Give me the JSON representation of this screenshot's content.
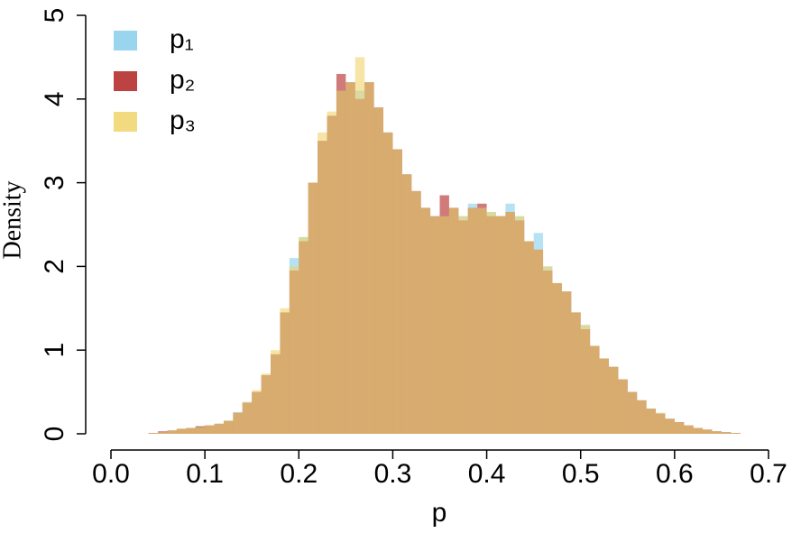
{
  "chart_data": {
    "type": "histogram",
    "x_label": "p",
    "y_label": "Density",
    "bins": [
      0.04,
      0.05,
      0.06,
      0.07,
      0.08,
      0.09,
      0.1,
      0.11,
      0.12,
      0.13,
      0.14,
      0.15,
      0.16,
      0.17,
      0.18,
      0.19,
      0.2,
      0.21,
      0.22,
      0.23,
      0.24,
      0.25,
      0.26,
      0.27,
      0.28,
      0.29,
      0.3,
      0.31,
      0.32,
      0.33,
      0.34,
      0.35,
      0.36,
      0.37,
      0.38,
      0.39,
      0.4,
      0.41,
      0.42,
      0.43,
      0.44,
      0.45,
      0.46,
      0.47,
      0.48,
      0.49,
      0.5,
      0.51,
      0.52,
      0.53,
      0.54,
      0.55,
      0.56,
      0.57,
      0.58,
      0.59,
      0.6,
      0.61,
      0.62,
      0.63,
      0.64,
      0.65,
      0.66,
      0.67
    ],
    "series": [
      {
        "name": "p₁",
        "color": "#87ceeb",
        "values": [
          0.01,
          0.02,
          0.04,
          0.06,
          0.07,
          0.09,
          0.1,
          0.12,
          0.16,
          0.26,
          0.38,
          0.5,
          0.7,
          0.95,
          1.45,
          2.1,
          2.35,
          3.0,
          3.5,
          3.8,
          4.1,
          4.2,
          4.1,
          4.2,
          3.9,
          3.6,
          3.4,
          3.1,
          2.9,
          2.7,
          2.6,
          2.6,
          2.7,
          2.6,
          2.75,
          2.7,
          2.65,
          2.6,
          2.75,
          2.6,
          2.3,
          2.4,
          2.0,
          1.8,
          1.7,
          1.45,
          1.3,
          1.05,
          0.9,
          0.8,
          0.65,
          0.5,
          0.4,
          0.3,
          0.25,
          0.18,
          0.14,
          0.1,
          0.07,
          0.05,
          0.03,
          0.02,
          0.01
        ]
      },
      {
        "name": "p₂",
        "color": "#b22222",
        "values": [
          0.01,
          0.03,
          0.04,
          0.06,
          0.07,
          0.09,
          0.1,
          0.12,
          0.15,
          0.25,
          0.37,
          0.5,
          0.7,
          0.95,
          1.45,
          1.95,
          2.3,
          3.0,
          3.5,
          3.8,
          4.3,
          4.2,
          4.0,
          4.2,
          3.9,
          3.6,
          3.4,
          3.1,
          2.9,
          2.7,
          2.6,
          2.85,
          2.7,
          2.55,
          2.7,
          2.75,
          2.6,
          2.6,
          2.65,
          2.55,
          2.3,
          2.2,
          1.95,
          1.8,
          1.7,
          1.45,
          1.25,
          1.05,
          0.9,
          0.8,
          0.65,
          0.5,
          0.4,
          0.3,
          0.24,
          0.18,
          0.14,
          0.1,
          0.07,
          0.05,
          0.03,
          0.02,
          0.01
        ]
      },
      {
        "name": "p₃",
        "color": "#f0d36a",
        "values": [
          0.01,
          0.02,
          0.04,
          0.06,
          0.07,
          0.08,
          0.1,
          0.12,
          0.16,
          0.25,
          0.38,
          0.52,
          0.72,
          1.0,
          1.5,
          2.0,
          2.35,
          3.0,
          3.6,
          3.85,
          4.1,
          4.2,
          4.5,
          4.2,
          3.9,
          3.6,
          3.4,
          3.1,
          2.9,
          2.7,
          2.6,
          2.6,
          2.7,
          2.6,
          2.7,
          2.7,
          2.65,
          2.6,
          2.65,
          2.6,
          2.3,
          2.2,
          2.0,
          1.8,
          1.7,
          1.45,
          1.3,
          1.05,
          0.9,
          0.8,
          0.65,
          0.5,
          0.4,
          0.3,
          0.25,
          0.18,
          0.14,
          0.1,
          0.07,
          0.05,
          0.03,
          0.02,
          0.01
        ]
      }
    ],
    "xlim": [
      0,
      0.7
    ],
    "xticks": [
      {
        "value": 0,
        "label": "0.0"
      },
      0.1,
      0.2,
      0.3,
      0.4,
      0.5,
      0.6,
      0.7
    ],
    "ylim": [
      0,
      5
    ],
    "yticks": [
      0,
      1,
      2,
      3,
      4,
      5
    ],
    "legend": "top-left"
  }
}
